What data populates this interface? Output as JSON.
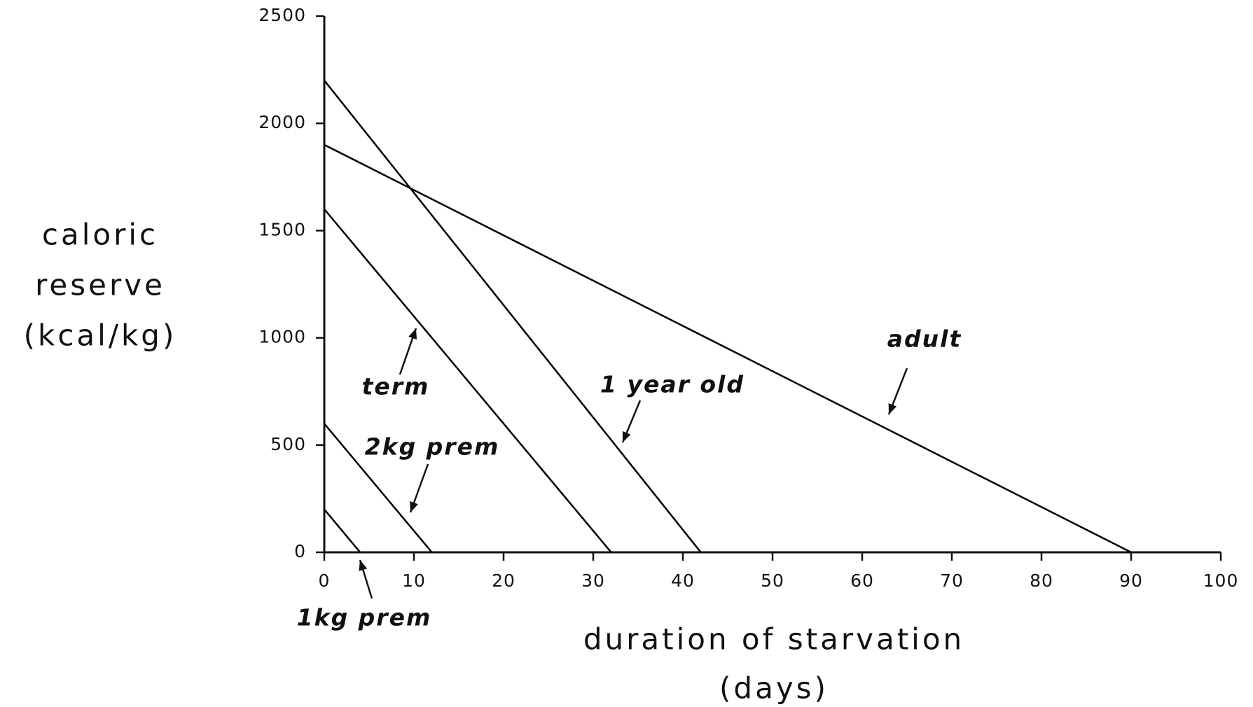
{
  "chart_data": {
    "type": "line",
    "ylabel": [
      "caloric",
      "reserve",
      "(kcal/kg)"
    ],
    "xlabel": [
      "duration of starvation",
      "(days)"
    ],
    "xlim": [
      0,
      100
    ],
    "xticks": [
      0,
      10,
      20,
      30,
      40,
      50,
      60,
      70,
      80,
      90,
      100
    ],
    "ylim": [
      0,
      2500
    ],
    "yticks": [
      0,
      500,
      1000,
      1500,
      2000,
      2500
    ],
    "grid": false,
    "series": [
      {
        "name": "1kg prem",
        "color": "#000000",
        "x": [
          0,
          4
        ],
        "values": [
          200,
          0
        ]
      },
      {
        "name": "2kg prem",
        "color": "#000000",
        "x": [
          0,
          12
        ],
        "values": [
          600,
          0
        ]
      },
      {
        "name": "term",
        "color": "#000000",
        "x": [
          0,
          32
        ],
        "values": [
          1600,
          0
        ]
      },
      {
        "name": "1 year old",
        "color": "#000000",
        "x": [
          0,
          42
        ],
        "values": [
          2200,
          0
        ]
      },
      {
        "name": "adult",
        "color": "#000000",
        "x": [
          0,
          90
        ],
        "values": [
          1900,
          0
        ]
      }
    ]
  }
}
